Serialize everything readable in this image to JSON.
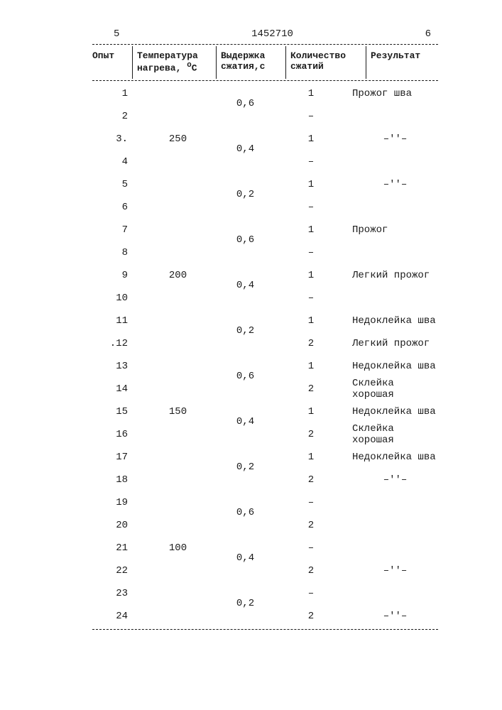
{
  "top": {
    "left_page": "5",
    "doc_number": "1452710",
    "right_page": "6"
  },
  "headers": {
    "opyt": "Опыт",
    "temp1": "Температура",
    "temp2_a": "нагрева,",
    "temp2_b_sup": "о",
    "temp2_b": "С",
    "vyd1": "Выдержка",
    "vyd2": "сжатия,с",
    "kol1": "Количество",
    "kol2": "сжатий",
    "rez": "Результат"
  },
  "temps": {
    "g1": "250",
    "g2": "200",
    "g3": "150",
    "g4": "100"
  },
  "delays": {
    "a": "0,6",
    "b": "0,4",
    "c": "0,2"
  },
  "counts": {
    "one": "1",
    "two": "2",
    "dash": "–"
  },
  "res": {
    "prozhog_shva": "Прожог шва",
    "prozhog": "Прожог",
    "legkiy_prozhog": "Легкий прожог",
    "nedokleyka": "Недоклейка шва",
    "skleyka": "Склейка хорошая",
    "ditto": "–''–"
  },
  "rows": {
    "r1": "1",
    "r2": "2",
    "r3": "3.",
    "r4": "4",
    "r5": "5",
    "r6": "6",
    "r7": "7",
    "r8": "8",
    "r9": "9",
    "r10": "10",
    "r11": "11",
    "r12": ".12",
    "r13": "13",
    "r14": "14",
    "r15": "15",
    "r16": "16",
    "r17": "17",
    "r18": "18",
    "r19": "19",
    "r20": "20",
    "r21": "21",
    "r22": "22",
    "r23": "23",
    "r24": "24"
  }
}
